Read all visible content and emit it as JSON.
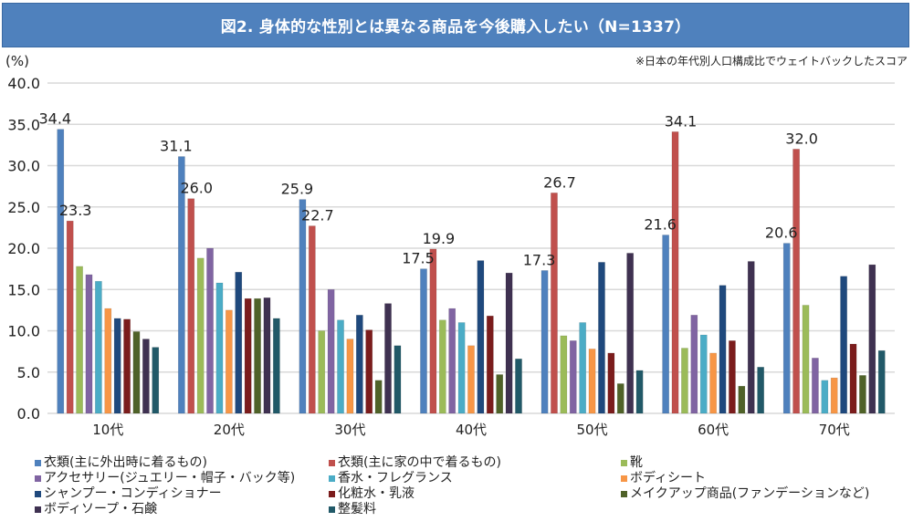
{
  "header": {
    "title": "図2. 身体的な性別とは異なる商品を今後購入したい（N=1337）",
    "unit": "(%)",
    "note": "※日本の年代別人口構成比でウェイトバックしたスコア"
  },
  "chart_data": {
    "type": "bar",
    "title": "図2. 身体的な性別とは異なる商品を今後購入したい（N=1337）",
    "xlabel": "",
    "ylabel": "(%)",
    "ylim": [
      0,
      40
    ],
    "yticks": [
      "0.0",
      "5.0",
      "10.0",
      "15.0",
      "20.0",
      "25.0",
      "30.0",
      "35.0",
      "40.0"
    ],
    "grid": true,
    "legend_position": "bottom",
    "categories": [
      "10代",
      "20代",
      "30代",
      "40代",
      "50代",
      "60代",
      "70代"
    ],
    "series": [
      {
        "name": "衣類(主に外出時に着るもの)",
        "color": "#4f81bd",
        "values": [
          34.4,
          31.1,
          25.9,
          17.5,
          17.3,
          21.6,
          20.6
        ],
        "labeled": true
      },
      {
        "name": "衣類(主に家の中で着るもの)",
        "color": "#c0504d",
        "values": [
          23.3,
          26.0,
          22.7,
          19.9,
          26.7,
          34.1,
          32.0
        ],
        "labeled": true
      },
      {
        "name": "靴",
        "color": "#9bbb59",
        "values": [
          17.8,
          18.8,
          10.0,
          11.3,
          9.4,
          7.9,
          13.1
        ],
        "labeled": false
      },
      {
        "name": "アクセサリー(ジュエリー・帽子・バック等)",
        "color": "#8064a2",
        "values": [
          16.8,
          20.0,
          15.0,
          12.7,
          8.8,
          11.9,
          6.7
        ],
        "labeled": false
      },
      {
        "name": "香水・フレグランス",
        "color": "#4bacc6",
        "values": [
          16.0,
          15.8,
          11.3,
          11.0,
          11.0,
          9.5,
          4.0
        ],
        "labeled": false
      },
      {
        "name": "ボディシート",
        "color": "#f79646",
        "values": [
          12.7,
          12.5,
          9.0,
          8.2,
          7.8,
          7.3,
          4.3
        ],
        "labeled": false
      },
      {
        "name": "シャンプー・コンディショナー",
        "color": "#1f497d",
        "values": [
          11.5,
          17.1,
          11.9,
          18.5,
          18.3,
          15.5,
          16.6
        ],
        "labeled": false
      },
      {
        "name": "化粧水・乳液",
        "color": "#7b1c1c",
        "values": [
          11.4,
          13.9,
          10.1,
          11.8,
          7.3,
          8.8,
          8.4
        ],
        "labeled": false
      },
      {
        "name": "メイクアップ商品(ファンデーションなど)",
        "color": "#4f6228",
        "values": [
          9.9,
          13.9,
          4.0,
          4.7,
          3.6,
          3.3,
          4.6
        ],
        "labeled": false
      },
      {
        "name": "ボディソープ・石鹸",
        "color": "#3f3151",
        "values": [
          9.0,
          14.0,
          13.3,
          17.0,
          19.4,
          18.4,
          18.0
        ],
        "labeled": false
      },
      {
        "name": "整髪料",
        "color": "#215968",
        "values": [
          8.0,
          11.5,
          8.2,
          6.6,
          5.2,
          5.6,
          7.6
        ],
        "labeled": false
      }
    ]
  }
}
